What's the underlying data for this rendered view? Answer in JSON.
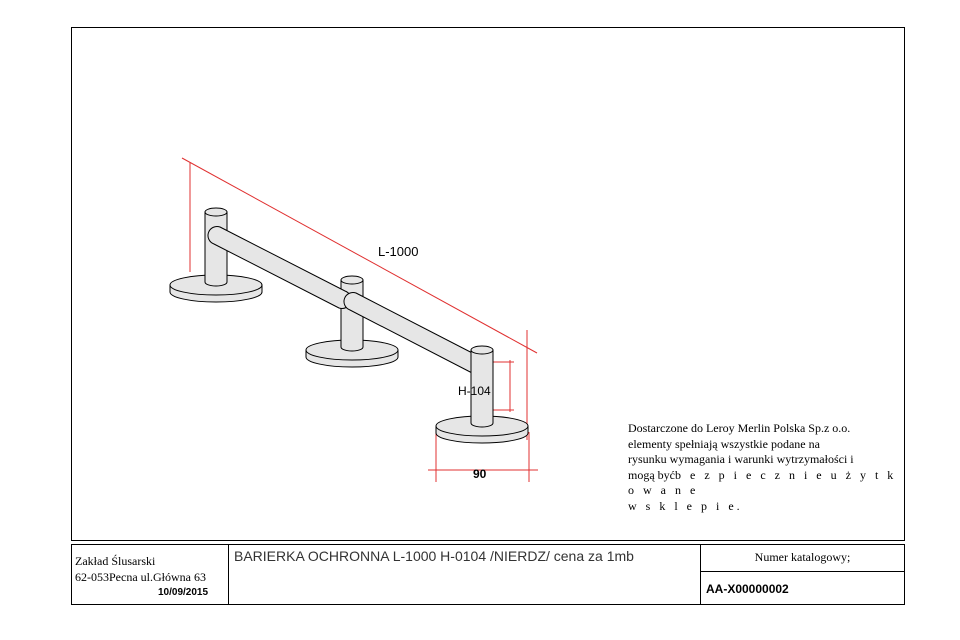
{
  "drawing": {
    "dimension_length_label": "L-1000",
    "dimension_height_label": "H-104",
    "dimension_width_label": "90",
    "note": {
      "line1": "Dostarczone do Leroy Merlin Polska Sp.z o.o.",
      "line2": "elementy spełniają wszystkie podane na",
      "line3": "rysunku wymagania i warunki wytrzymałości i",
      "line4a": "mogą być",
      "line4b": "b e z p i e c z n i e   u ż y t k o w a n e",
      "line5": "w  s k l e p i e."
    }
  },
  "title_block": {
    "company_name": "Zakład Ślusarski",
    "company_address": "62-053Pecna ul.Główna 63",
    "date": "10/09/2015",
    "product_title": "BARIERKA OCHRONNA L-1000 H-0104 /NIERDZ/ cena za 1mb",
    "catalog_label": "Numer katalogowy;",
    "catalog_number": "AA-X00000002"
  },
  "colors": {
    "dimension_lines": "#e03030",
    "part_fill": "#e6e6e6",
    "part_stroke": "#000000"
  }
}
